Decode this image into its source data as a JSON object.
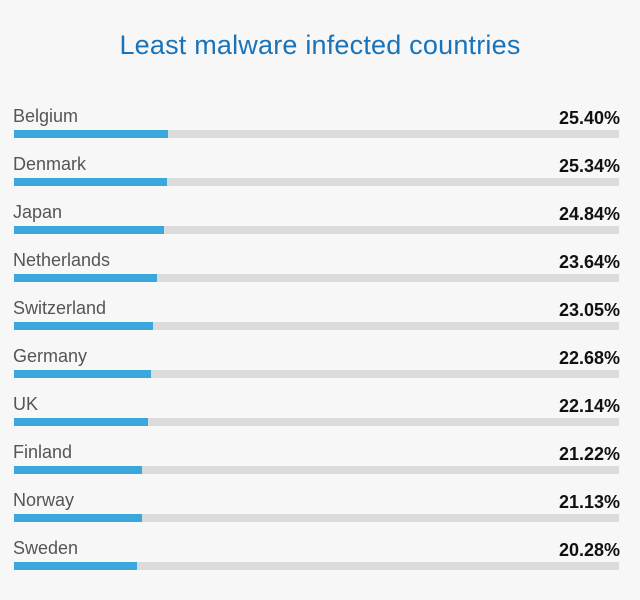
{
  "title": "Least malware infected countries",
  "colors": {
    "title": "#1a73b8",
    "bar_fill": "#3aa8dc",
    "bar_track": "#dcdcdc",
    "background": "#f7f7f7"
  },
  "chart_data": {
    "type": "bar",
    "orientation": "horizontal",
    "title": "Least malware infected countries",
    "categories": [
      "Belgium",
      "Denmark",
      "Japan",
      "Netherlands",
      "Switzerland",
      "Germany",
      "UK",
      "Finland",
      "Norway",
      "Sweden"
    ],
    "values": [
      25.4,
      25.34,
      24.84,
      23.64,
      23.05,
      22.68,
      22.14,
      21.22,
      21.13,
      20.28
    ],
    "value_labels": [
      "25.40%",
      "25.34%",
      "24.84%",
      "23.64%",
      "23.05%",
      "22.68%",
      "22.14%",
      "21.22%",
      "21.13%",
      "20.28%"
    ],
    "unit": "%",
    "xlim": [
      0,
      100
    ],
    "grid": false,
    "legend": "none"
  }
}
